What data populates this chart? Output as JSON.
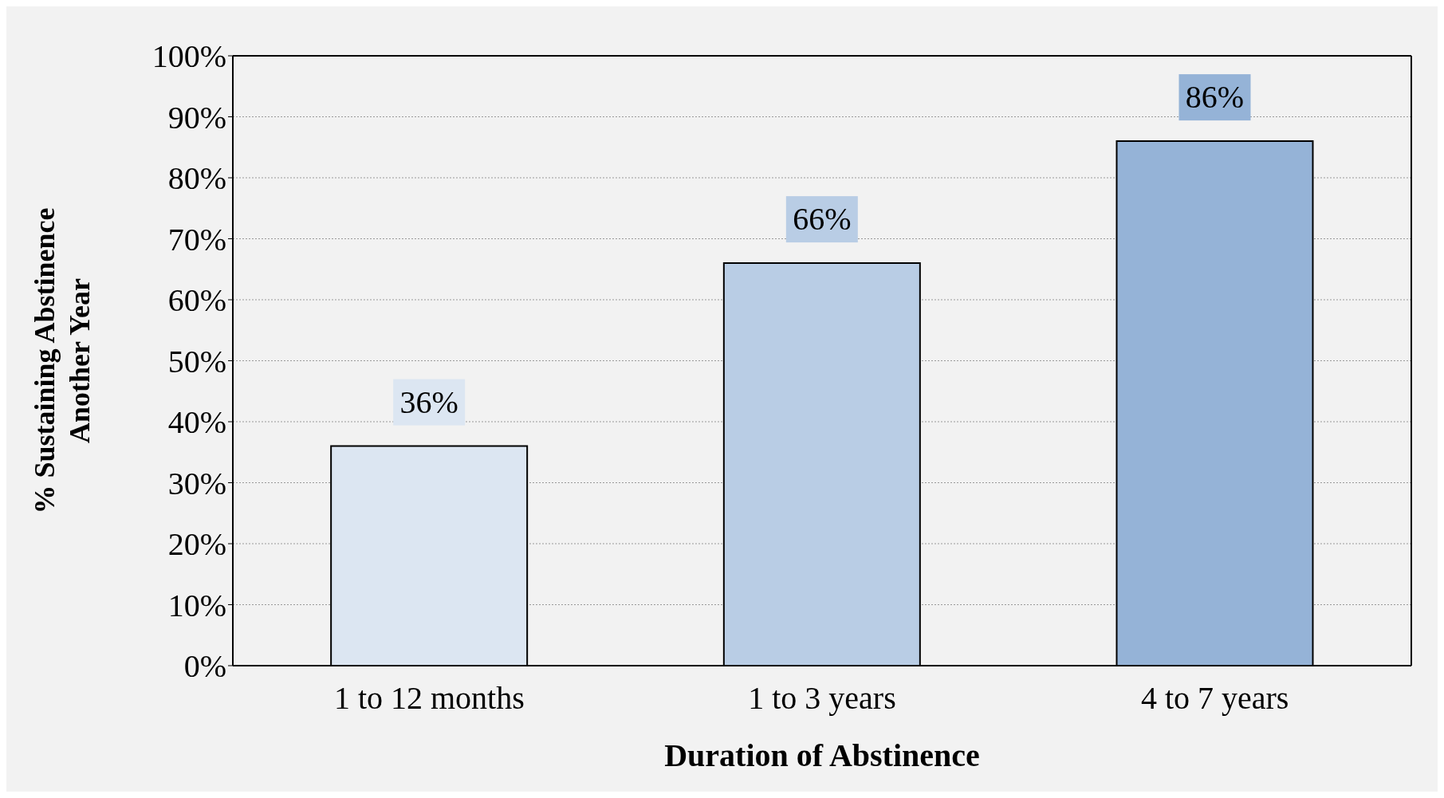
{
  "chart_data": {
    "type": "bar",
    "xlabel": "Duration of Abstinence",
    "ylabel": "% Sustaining Abstinence\nAnother Year",
    "categories": [
      "1 to 12 months",
      "1 to 3 years",
      "4 to 7 years"
    ],
    "values": [
      36,
      66,
      86
    ],
    "colors": [
      "#dce6f2",
      "#b9cde5",
      "#95b3d7"
    ],
    "value_labels": [
      "36%",
      "66%",
      "86%"
    ],
    "ylim": [
      0,
      100
    ],
    "yticks": [
      {
        "value": 0,
        "label": "0%"
      },
      {
        "value": 10,
        "label": "10%"
      },
      {
        "value": 20,
        "label": "20%"
      },
      {
        "value": 30,
        "label": "30%"
      },
      {
        "value": 40,
        "label": "40%"
      },
      {
        "value": 50,
        "label": "50%"
      },
      {
        "value": 60,
        "label": "60%"
      },
      {
        "value": 70,
        "label": "70%"
      },
      {
        "value": 80,
        "label": "80%"
      },
      {
        "value": 90,
        "label": "90%"
      },
      {
        "value": 100,
        "label": "100%"
      }
    ],
    "grid": "y"
  }
}
